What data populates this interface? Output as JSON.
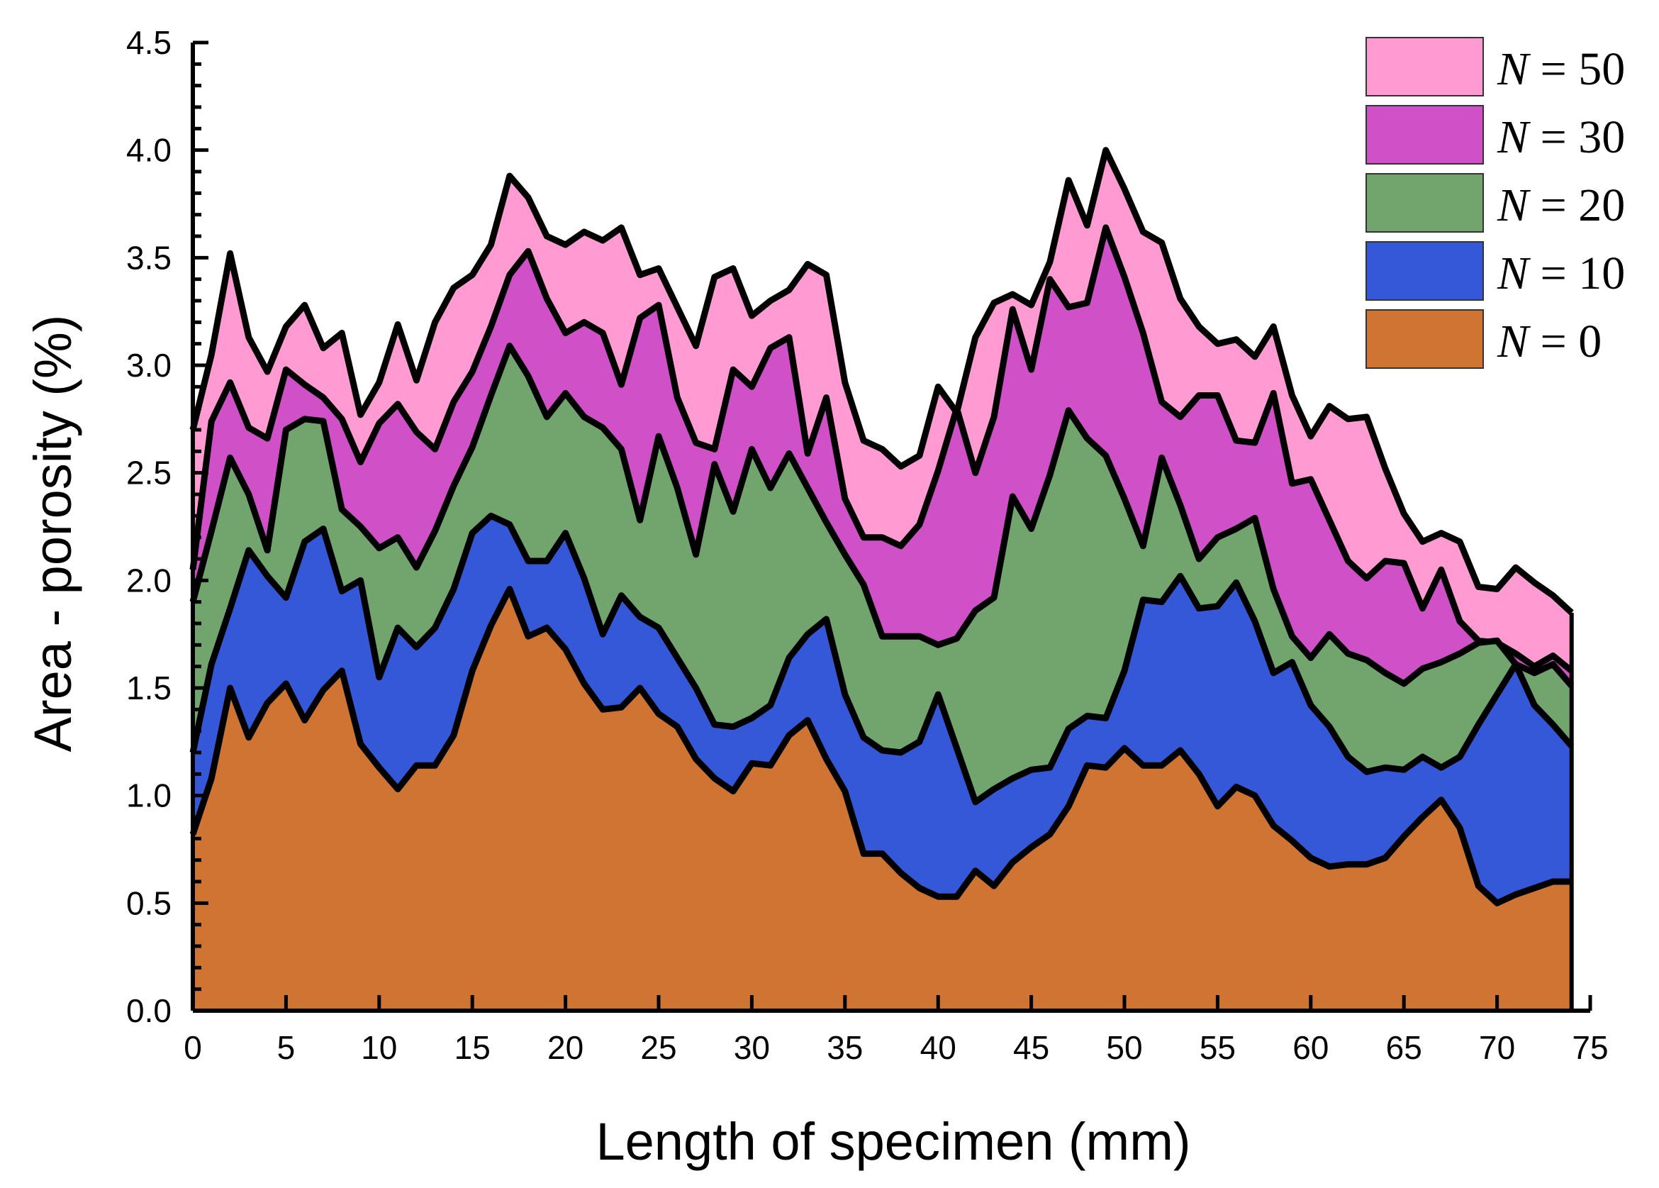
{
  "chart_data": {
    "type": "area",
    "stacked": false,
    "xlabel": "Length of specimen (mm)",
    "ylabel": "Area - porosity (%)",
    "xlim": [
      0,
      75
    ],
    "ylim": [
      0,
      4.5
    ],
    "xticks": [
      0,
      5,
      10,
      15,
      20,
      25,
      30,
      35,
      40,
      45,
      50,
      55,
      60,
      65,
      70,
      75
    ],
    "xtick_labels": [
      "0",
      "5",
      "10",
      "15",
      "20",
      "25",
      "30",
      "35",
      "40",
      "45",
      "50",
      "55",
      "60",
      "65",
      "70",
      "75"
    ],
    "yticks": [
      0.0,
      0.5,
      1.0,
      1.5,
      2.0,
      2.5,
      3.0,
      3.5,
      4.0,
      4.5
    ],
    "ytick_labels": [
      "0.0",
      "0.5",
      "1.0",
      "1.5",
      "2.0",
      "2.5",
      "3.0",
      "3.5",
      "4.0",
      "4.5"
    ],
    "grid": false,
    "legend_position": "top-right",
    "x": [
      0,
      1,
      2,
      3,
      4,
      5,
      6,
      7,
      8,
      9,
      10,
      11,
      12,
      13,
      14,
      15,
      16,
      17,
      18,
      19,
      20,
      21,
      22,
      23,
      24,
      25,
      26,
      27,
      28,
      29,
      30,
      31,
      32,
      33,
      34,
      35,
      36,
      37,
      38,
      39,
      40,
      41,
      42,
      43,
      44,
      45,
      46,
      47,
      48,
      49,
      50,
      51,
      52,
      53,
      54,
      55,
      56,
      57,
      58,
      59,
      60,
      61,
      62,
      63,
      64,
      65,
      66,
      67,
      68,
      69,
      70,
      71,
      72,
      73,
      74
    ],
    "series": [
      {
        "name": "N = 50",
        "legend_var": "N",
        "legend_value": "= 50",
        "color": "#ff9bd2",
        "values": [
          2.7,
          3.05,
          3.52,
          3.13,
          2.97,
          3.18,
          3.28,
          3.08,
          3.15,
          2.77,
          2.92,
          3.19,
          2.93,
          3.2,
          3.36,
          3.42,
          3.56,
          3.88,
          3.78,
          3.6,
          3.56,
          3.62,
          3.58,
          3.64,
          3.42,
          3.45,
          3.27,
          3.09,
          3.41,
          3.45,
          3.23,
          3.3,
          3.35,
          3.47,
          3.42,
          2.92,
          2.65,
          2.61,
          2.53,
          2.58,
          2.9,
          2.78,
          3.13,
          3.29,
          3.33,
          3.28,
          3.48,
          3.86,
          3.65,
          4.0,
          3.82,
          3.62,
          3.57,
          3.31,
          3.18,
          3.1,
          3.12,
          3.04,
          3.18,
          2.86,
          2.67,
          2.81,
          2.75,
          2.76,
          2.52,
          2.31,
          2.18,
          2.22,
          2.18,
          1.97,
          1.96,
          2.06,
          1.99,
          1.93,
          1.85
        ]
      },
      {
        "name": "N = 30",
        "legend_var": "N",
        "legend_value": "= 30",
        "color": "#d050c8",
        "values": [
          2.05,
          2.74,
          2.92,
          2.71,
          2.66,
          2.98,
          2.91,
          2.85,
          2.75,
          2.55,
          2.73,
          2.82,
          2.69,
          2.61,
          2.83,
          2.97,
          3.18,
          3.42,
          3.53,
          3.31,
          3.15,
          3.2,
          3.15,
          2.91,
          3.22,
          3.28,
          2.85,
          2.64,
          2.61,
          2.98,
          2.9,
          3.08,
          3.13,
          2.59,
          2.85,
          2.38,
          2.2,
          2.2,
          2.16,
          2.26,
          2.51,
          2.8,
          2.5,
          2.76,
          3.26,
          2.98,
          3.4,
          3.27,
          3.29,
          3.64,
          3.41,
          3.15,
          2.83,
          2.76,
          2.86,
          2.86,
          2.65,
          2.64,
          2.87,
          2.45,
          2.47,
          2.28,
          2.09,
          2.01,
          2.09,
          2.08,
          1.87,
          2.05,
          1.81,
          1.72,
          1.71,
          1.66,
          1.6,
          1.65,
          1.58
        ]
      },
      {
        "name": "N = 20",
        "legend_var": "N",
        "legend_value": "= 20",
        "color": "#72a56e",
        "values": [
          1.9,
          2.23,
          2.57,
          2.4,
          2.14,
          2.7,
          2.75,
          2.74,
          2.33,
          2.25,
          2.15,
          2.2,
          2.06,
          2.23,
          2.44,
          2.62,
          2.86,
          3.09,
          2.95,
          2.76,
          2.87,
          2.76,
          2.71,
          2.61,
          2.28,
          2.67,
          2.43,
          2.12,
          2.54,
          2.32,
          2.61,
          2.43,
          2.59,
          2.43,
          2.27,
          2.12,
          1.98,
          1.74,
          1.74,
          1.74,
          1.7,
          1.73,
          1.86,
          1.92,
          2.39,
          2.24,
          2.49,
          2.79,
          2.66,
          2.58,
          2.38,
          2.16,
          2.57,
          2.35,
          2.1,
          2.2,
          2.24,
          2.29,
          1.96,
          1.74,
          1.64,
          1.75,
          1.66,
          1.63,
          1.57,
          1.52,
          1.59,
          1.62,
          1.66,
          1.71,
          1.72,
          1.61,
          1.57,
          1.61,
          1.51
        ]
      },
      {
        "name": "N = 10",
        "legend_var": "N",
        "legend_value": "= 10",
        "color": "#3558d8",
        "values": [
          1.2,
          1.61,
          1.87,
          2.14,
          2.02,
          1.92,
          2.18,
          2.24,
          1.95,
          2.0,
          1.55,
          1.78,
          1.69,
          1.78,
          1.96,
          2.22,
          2.3,
          2.26,
          2.09,
          2.09,
          2.22,
          2.01,
          1.75,
          1.93,
          1.83,
          1.78,
          1.64,
          1.5,
          1.33,
          1.32,
          1.36,
          1.42,
          1.64,
          1.75,
          1.82,
          1.47,
          1.27,
          1.21,
          1.2,
          1.25,
          1.47,
          1.22,
          0.97,
          1.03,
          1.08,
          1.12,
          1.13,
          1.31,
          1.37,
          1.36,
          1.58,
          1.91,
          1.9,
          2.02,
          1.87,
          1.88,
          1.99,
          1.81,
          1.57,
          1.62,
          1.42,
          1.32,
          1.18,
          1.11,
          1.13,
          1.12,
          1.18,
          1.13,
          1.18,
          1.33,
          1.47,
          1.61,
          1.42,
          1.33,
          1.23
        ]
      },
      {
        "name": "N = 0",
        "legend_var": "N",
        "legend_value": "= 0",
        "color": "#d07434",
        "values": [
          0.82,
          1.08,
          1.5,
          1.27,
          1.43,
          1.52,
          1.35,
          1.49,
          1.58,
          1.24,
          1.13,
          1.03,
          1.14,
          1.14,
          1.28,
          1.58,
          1.79,
          1.96,
          1.74,
          1.78,
          1.68,
          1.52,
          1.4,
          1.41,
          1.5,
          1.38,
          1.32,
          1.17,
          1.08,
          1.02,
          1.15,
          1.14,
          1.28,
          1.35,
          1.17,
          1.02,
          0.73,
          0.73,
          0.64,
          0.57,
          0.53,
          0.53,
          0.65,
          0.58,
          0.69,
          0.76,
          0.82,
          0.95,
          1.14,
          1.13,
          1.22,
          1.14,
          1.14,
          1.21,
          1.1,
          0.95,
          1.04,
          1.0,
          0.86,
          0.79,
          0.71,
          0.67,
          0.68,
          0.68,
          0.71,
          0.81,
          0.9,
          0.98,
          0.85,
          0.58,
          0.5,
          0.54,
          0.57,
          0.6,
          0.6
        ]
      }
    ]
  }
}
